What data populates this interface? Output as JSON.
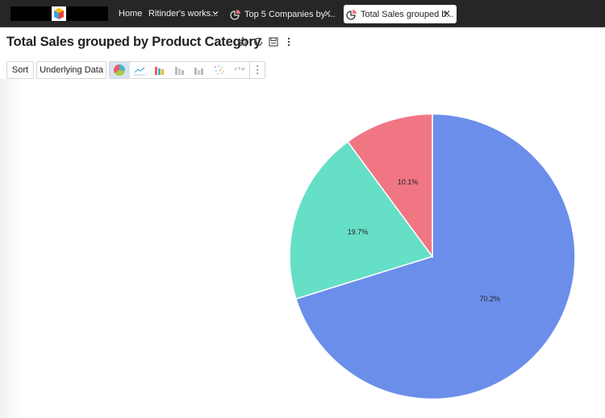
{
  "topbar": {
    "nav_home": "Home",
    "nav_workspace": "Ritinder's works...",
    "tabs": [
      {
        "label": "Top 5 Companies by ...",
        "close": "✕",
        "active": false
      },
      {
        "label": "Total Sales grouped b...",
        "close": "✕",
        "active": true
      }
    ]
  },
  "page": {
    "title": "Total Sales grouped by Product Category",
    "title_icons": [
      "star-icon",
      "refresh-icon",
      "save-icon",
      "more-vertical-icon"
    ]
  },
  "toolbar": {
    "sort_label": "Sort",
    "underlying_data_label": "Underlying Data",
    "chart_types": [
      "pie",
      "line",
      "bar",
      "stacked-bar",
      "grouped-bar",
      "scatter",
      "map"
    ],
    "active_chart_type": "pie",
    "more_label": "⋮"
  },
  "colors": {
    "blue": "#6b8eea",
    "teal": "#66dfc7",
    "pink": "#f07684",
    "topbar_bg": "#262626"
  },
  "chart_data": {
    "type": "pie",
    "title": "Total Sales grouped by Product Category",
    "start_angle_deg": 0,
    "direction": "clockwise",
    "slices": [
      {
        "label": "70.2%",
        "value": 70.2,
        "color": "#6b8eea"
      },
      {
        "label": "19.7%",
        "value": 19.7,
        "color": "#66dfc7"
      },
      {
        "label": "10.1%",
        "value": 10.1,
        "color": "#f07684"
      }
    ],
    "legend": "none",
    "data_labels": "percent"
  }
}
